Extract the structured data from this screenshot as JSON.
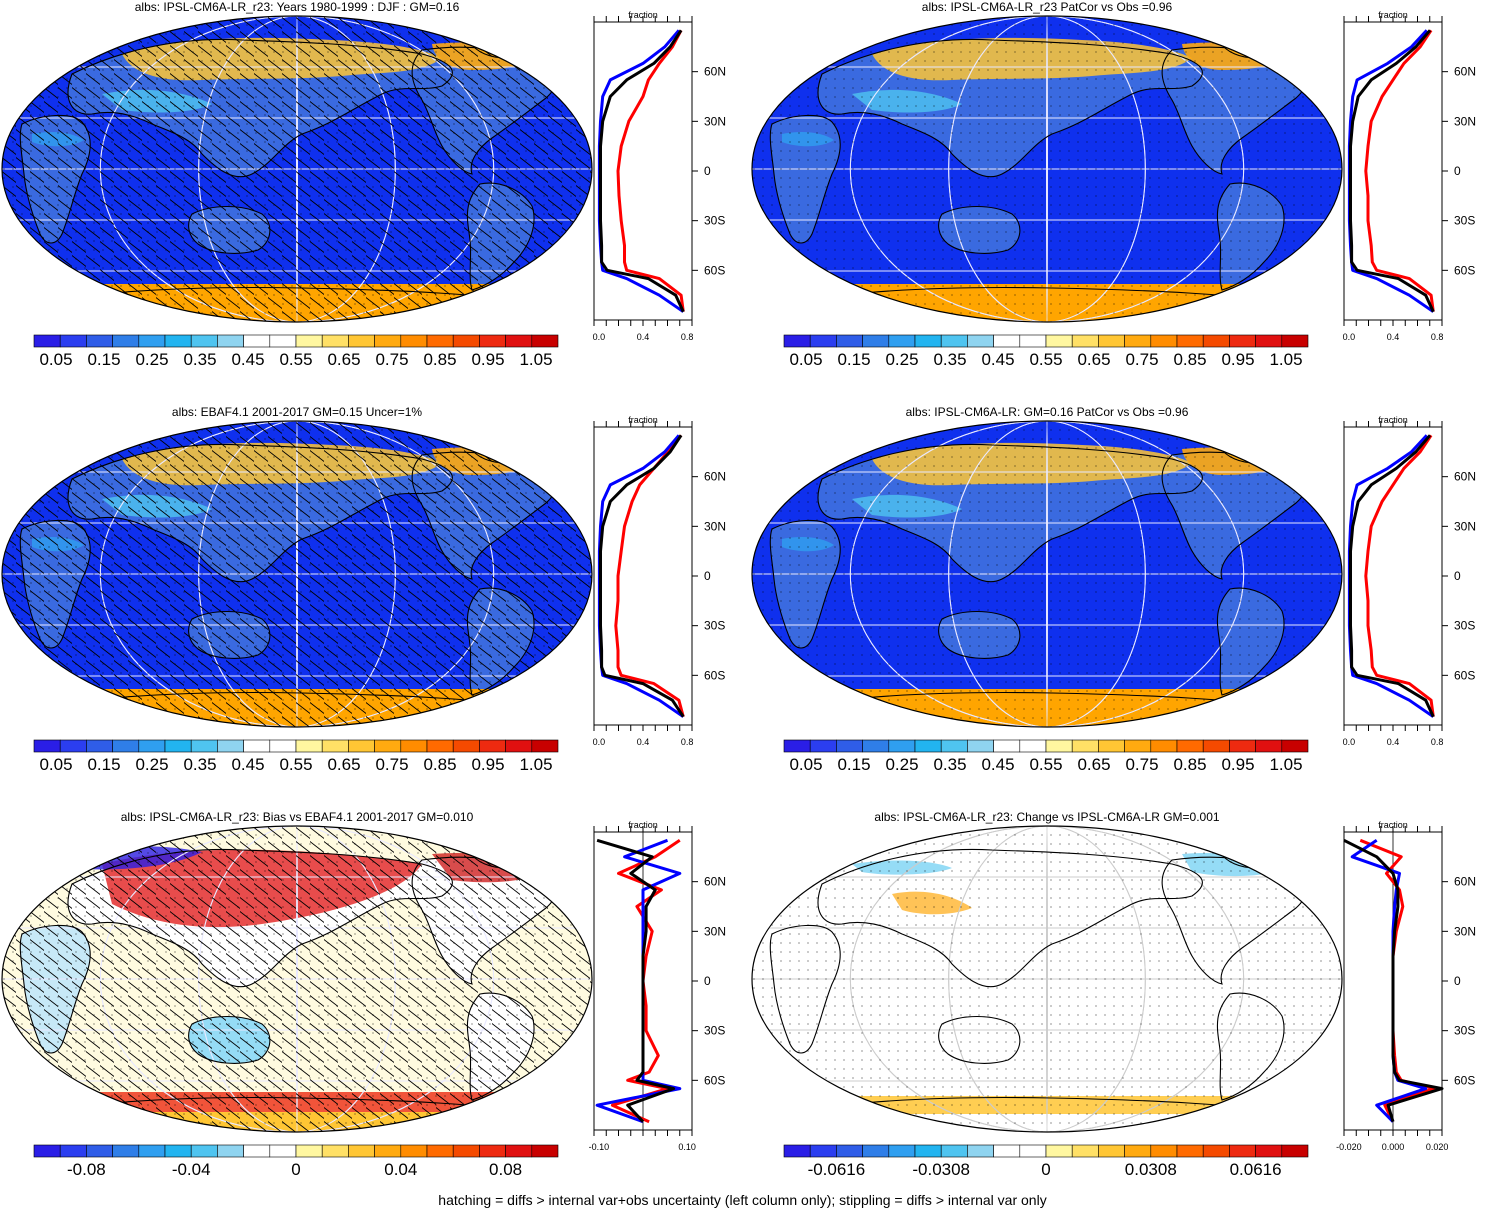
{
  "panels": [
    {
      "title": "albs: IPSL-CM6A-LR_r23: Years 1980-1999 : DJF : GM=0.16",
      "scale": "abs",
      "hatch": true,
      "profile_label": "fraction",
      "profile_ticks": [
        "0.0",
        "0.4",
        "0.8"
      ]
    },
    {
      "title": "albs: IPSL-CM6A-LR_r23 PatCor vs Obs =0.96",
      "scale": "abs",
      "hatch": false,
      "profile_label": "fraction",
      "profile_ticks": [
        "0.0",
        "0.4",
        "0.8"
      ]
    },
    {
      "title": "albs: EBAF4.1 2001-2017 GM=0.15 Uncer=1%",
      "scale": "abs",
      "hatch": true,
      "profile_label": "fraction",
      "profile_ticks": [
        "0.0",
        "0.4",
        "0.8"
      ]
    },
    {
      "title": "albs: IPSL-CM6A-LR: GM=0.16 PatCor vs Obs =0.96",
      "scale": "abs",
      "hatch": false,
      "profile_label": "fraction",
      "profile_ticks": [
        "0.0",
        "0.4",
        "0.8"
      ]
    },
    {
      "title": "albs: IPSL-CM6A-LR_r23: Bias vs EBAF4.1 2001-2017 GM=0.010",
      "scale": "bias",
      "hatch": true,
      "profile_label": "fraction",
      "profile_ticks": [
        "-0.10",
        "0.10"
      ]
    },
    {
      "title": "albs: IPSL-CM6A-LR_r23: Change vs IPSL-CM6A-LR GM=0.001",
      "scale": "change",
      "hatch": false,
      "profile_label": "fraction",
      "profile_ticks": [
        "-0.020",
        "0.000",
        "0.020"
      ]
    }
  ],
  "lat_labels": [
    "60N",
    "30N",
    "0",
    "30S",
    "60S"
  ],
  "colorbars": {
    "abs": {
      "labels": [
        "0.05",
        "0.15",
        "0.25",
        "0.35",
        "0.45",
        "0.55",
        "0.65",
        "0.75",
        "0.85",
        "0.95",
        "1.05"
      ]
    },
    "bias": {
      "labels": [
        "-0.08",
        "-0.04",
        "0",
        "0.04",
        "0.08"
      ]
    },
    "change": {
      "labels": [
        "-0.0616",
        "-0.0308",
        "0",
        "0.0308",
        "0.0616"
      ]
    }
  },
  "palette": [
    "#2a1ee6",
    "#2b3ef0",
    "#2f5de8",
    "#2f7ee8",
    "#2f9ff0",
    "#22b4f0",
    "#4fc4f0",
    "#8fd4f0",
    "#ffffff",
    "#ffffff",
    "#fff7a0",
    "#ffe066",
    "#ffc634",
    "#ffaa10",
    "#ff8c00",
    "#ff6a00",
    "#f54a00",
    "#ee2a10",
    "#e01010",
    "#c80000"
  ],
  "colors": {
    "ocean_abs": "#0f30ee",
    "land_abs": "#3a6ae0",
    "snow": "#ffa500",
    "ice_bright": "#ffffff",
    "series_red": "#ff0000",
    "series_blue": "#0000ff",
    "series_black": "#000000"
  },
  "chart_data": [
    {
      "type": "heatmap",
      "title": "albs: IPSL-CM6A-LR_r23: Years 1980-1999 : DJF : GM=0.16",
      "legend": "colorbar-bottom",
      "profile": {
        "ylabel": "fraction",
        "lat": [
          -85,
          -75,
          -65,
          -60,
          -55,
          -45,
          -30,
          -15,
          0,
          15,
          30,
          45,
          55,
          65,
          75,
          85
        ],
        "series": [
          {
            "color": "red",
            "values": [
              0.82,
              0.8,
              0.6,
              0.3,
              0.28,
              0.28,
              0.25,
              0.23,
              0.22,
              0.25,
              0.32,
              0.45,
              0.5,
              0.6,
              0.72,
              0.8
            ]
          },
          {
            "color": "blue",
            "values": [
              0.82,
              0.6,
              0.3,
              0.08,
              0.07,
              0.06,
              0.05,
              0.05,
              0.05,
              0.05,
              0.06,
              0.08,
              0.15,
              0.45,
              0.65,
              0.78
            ]
          },
          {
            "color": "black",
            "values": [
              0.82,
              0.75,
              0.5,
              0.12,
              0.07,
              0.07,
              0.06,
              0.06,
              0.06,
              0.06,
              0.08,
              0.15,
              0.3,
              0.55,
              0.7,
              0.8
            ]
          }
        ],
        "xlim": [
          0,
          0.9
        ]
      }
    },
    {
      "type": "heatmap",
      "title": "albs: IPSL-CM6A-LR_r23 PatCor vs Obs =0.96",
      "legend": "colorbar-bottom",
      "profile": {
        "ylabel": "fraction",
        "lat": [
          -85,
          -75,
          -65,
          -60,
          -55,
          -45,
          -30,
          -15,
          0,
          15,
          30,
          45,
          55,
          65,
          75,
          85
        ],
        "series": [
          {
            "color": "red",
            "values": [
              0.82,
              0.8,
              0.6,
              0.3,
              0.26,
              0.25,
              0.22,
              0.22,
              0.2,
              0.22,
              0.25,
              0.35,
              0.45,
              0.55,
              0.7,
              0.8
            ]
          },
          {
            "color": "blue",
            "values": [
              0.82,
              0.6,
              0.3,
              0.08,
              0.07,
              0.06,
              0.05,
              0.05,
              0.05,
              0.05,
              0.06,
              0.08,
              0.12,
              0.4,
              0.62,
              0.76
            ]
          },
          {
            "color": "black",
            "values": [
              0.82,
              0.75,
              0.5,
              0.12,
              0.07,
              0.07,
              0.06,
              0.06,
              0.06,
              0.06,
              0.08,
              0.13,
              0.25,
              0.48,
              0.66,
              0.79
            ]
          }
        ],
        "xlim": [
          0,
          0.9
        ]
      }
    },
    {
      "type": "heatmap",
      "title": "albs: EBAF4.1 2001-2017 GM=0.15 Uncer=1%",
      "legend": "colorbar-bottom",
      "profile": {
        "ylabel": "fraction",
        "lat": [
          -85,
          -75,
          -65,
          -60,
          -55,
          -45,
          -30,
          -15,
          0,
          15,
          30,
          45,
          55,
          65,
          75,
          85
        ],
        "series": [
          {
            "color": "red",
            "values": [
              0.82,
              0.78,
              0.55,
              0.25,
              0.22,
              0.22,
              0.2,
              0.22,
              0.22,
              0.25,
              0.28,
              0.35,
              0.42,
              0.55,
              0.68,
              0.8
            ]
          },
          {
            "color": "blue",
            "values": [
              0.82,
              0.6,
              0.3,
              0.08,
              0.07,
              0.06,
              0.05,
              0.05,
              0.05,
              0.05,
              0.06,
              0.08,
              0.15,
              0.45,
              0.65,
              0.78
            ]
          },
          {
            "color": "black",
            "values": [
              0.82,
              0.72,
              0.45,
              0.1,
              0.07,
              0.07,
              0.06,
              0.06,
              0.06,
              0.06,
              0.08,
              0.15,
              0.3,
              0.55,
              0.7,
              0.8
            ]
          }
        ],
        "xlim": [
          0,
          0.9
        ]
      }
    },
    {
      "type": "heatmap",
      "title": "albs: IPSL-CM6A-LR: GM=0.16 PatCor vs Obs =0.96",
      "legend": "colorbar-bottom",
      "profile": {
        "ylabel": "fraction",
        "lat": [
          -85,
          -75,
          -65,
          -60,
          -55,
          -45,
          -30,
          -15,
          0,
          15,
          30,
          45,
          55,
          65,
          75,
          85
        ],
        "series": [
          {
            "color": "red",
            "values": [
              0.82,
              0.8,
              0.6,
              0.3,
              0.26,
              0.25,
              0.22,
              0.22,
              0.2,
              0.22,
              0.25,
              0.35,
              0.45,
              0.55,
              0.7,
              0.8
            ]
          },
          {
            "color": "blue",
            "values": [
              0.82,
              0.6,
              0.3,
              0.08,
              0.07,
              0.06,
              0.05,
              0.05,
              0.05,
              0.05,
              0.06,
              0.08,
              0.12,
              0.4,
              0.62,
              0.76
            ]
          },
          {
            "color": "black",
            "values": [
              0.82,
              0.75,
              0.5,
              0.12,
              0.07,
              0.07,
              0.06,
              0.06,
              0.06,
              0.06,
              0.08,
              0.13,
              0.25,
              0.48,
              0.66,
              0.79
            ]
          }
        ],
        "xlim": [
          0,
          0.9
        ]
      }
    },
    {
      "type": "heatmap",
      "title": "albs: IPSL-CM6A-LR_r23: Bias vs EBAF4.1 2001-2017 GM=0.010",
      "legend": "colorbar-bottom",
      "profile": {
        "ylabel": "fraction",
        "lat": [
          -85,
          -75,
          -65,
          -60,
          -55,
          -45,
          -30,
          -15,
          0,
          15,
          30,
          45,
          55,
          65,
          75,
          85
        ],
        "series": [
          {
            "color": "red",
            "values": [
              0.02,
              -0.1,
              0.08,
              -0.05,
              0.02,
              0.05,
              0.01,
              0.01,
              0.0,
              0.01,
              0.03,
              -0.02,
              0.06,
              -0.08,
              0.04,
              0.12
            ]
          },
          {
            "color": "blue",
            "values": [
              0.0,
              -0.15,
              0.12,
              0.0,
              0.0,
              0.0,
              0.0,
              0.0,
              0.0,
              0.0,
              0.0,
              0.0,
              0.0,
              0.12,
              -0.06,
              0.08
            ]
          },
          {
            "color": "black",
            "values": [
              0.0,
              -0.05,
              0.1,
              -0.02,
              0.0,
              0.0,
              0.0,
              0.0,
              0.0,
              0.0,
              0.01,
              0.01,
              0.04,
              -0.04,
              0.03,
              -0.15
            ]
          }
        ],
        "xlim": [
          -0.16,
          0.16
        ]
      }
    },
    {
      "type": "heatmap",
      "title": "albs: IPSL-CM6A-LR_r23: Change vs IPSL-CM6A-LR GM=0.001",
      "legend": "colorbar-bottom",
      "profile": {
        "ylabel": "fraction",
        "lat": [
          -85,
          -75,
          -65,
          -60,
          -55,
          -45,
          -30,
          -15,
          0,
          15,
          30,
          45,
          55,
          65,
          75,
          85
        ],
        "series": [
          {
            "color": "red",
            "values": [
              0.0,
              -0.005,
              0.025,
              0.005,
              0.002,
              0.001,
              0.0,
              0.0,
              0.0,
              0.0,
              0.002,
              0.006,
              0.004,
              -0.004,
              0.005,
              -0.02
            ]
          },
          {
            "color": "blue",
            "values": [
              0.0,
              -0.01,
              0.02,
              0.003,
              0.001,
              0.0,
              0.0,
              0.0,
              0.0,
              0.0,
              0.0,
              0.001,
              0.002,
              0.004,
              -0.025,
              -0.01
            ]
          },
          {
            "color": "black",
            "values": [
              0.0,
              -0.003,
              0.03,
              0.004,
              0.001,
              0.0,
              0.0,
              0.0,
              0.0,
              0.0,
              0.001,
              0.003,
              0.003,
              0.0,
              -0.01,
              -0.03
            ]
          }
        ],
        "xlim": [
          -0.03,
          0.03
        ]
      }
    }
  ],
  "footnote": "hatching = diffs > internal var+obs uncertainty (left column only); stippling = diffs > internal var only"
}
